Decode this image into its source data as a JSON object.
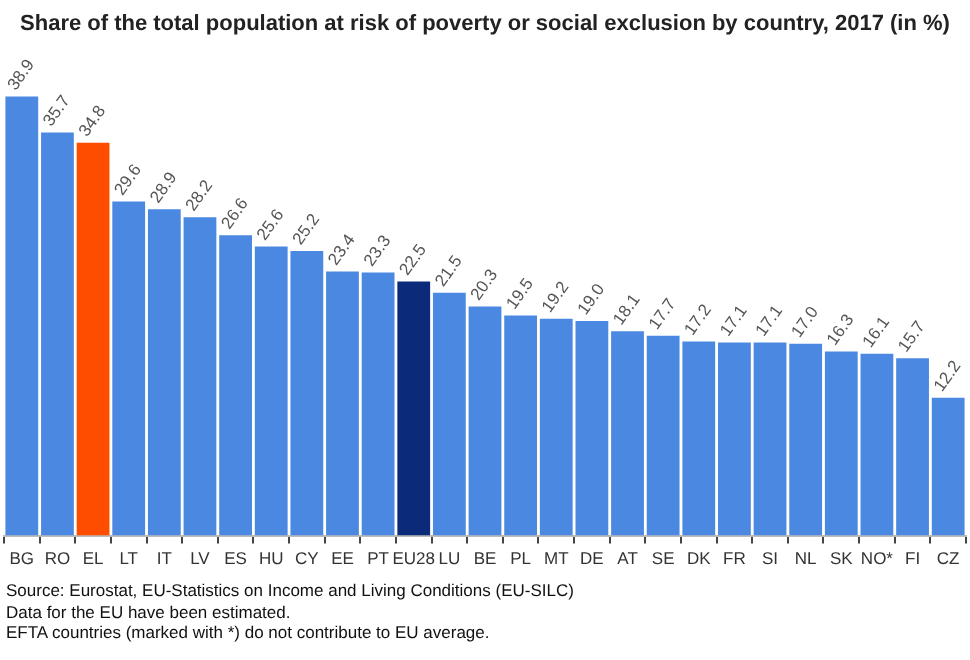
{
  "chart_data": {
    "type": "bar",
    "title": "Share of the total population at risk of poverty or social exclusion by country, 2017 (in %)",
    "categories": [
      "BG",
      "RO",
      "EL",
      "LT",
      "IT",
      "LV",
      "ES",
      "HU",
      "CY",
      "EE",
      "PT",
      "EU28",
      "LU",
      "BE",
      "PL",
      "MT",
      "DE",
      "AT",
      "SE",
      "DK",
      "FR",
      "SI",
      "NL",
      "SK",
      "NO*",
      "FI",
      "CZ"
    ],
    "values": [
      38.9,
      35.7,
      34.8,
      29.6,
      28.9,
      28.2,
      26.6,
      25.6,
      25.2,
      23.4,
      23.3,
      22.5,
      21.5,
      20.3,
      19.5,
      19.2,
      19.0,
      18.1,
      17.7,
      17.2,
      17.1,
      17.1,
      17.0,
      16.3,
      16.1,
      15.7,
      12.2
    ],
    "colors": [
      "#4a88e2",
      "#4a88e2",
      "#ff4d00",
      "#4a88e2",
      "#4a88e2",
      "#4a88e2",
      "#4a88e2",
      "#4a88e2",
      "#4a88e2",
      "#4a88e2",
      "#4a88e2",
      "#0b2a7a",
      "#4a88e2",
      "#4a88e2",
      "#4a88e2",
      "#4a88e2",
      "#4a88e2",
      "#4a88e2",
      "#4a88e2",
      "#4a88e2",
      "#4a88e2",
      "#4a88e2",
      "#4a88e2",
      "#4a88e2",
      "#4a88e2",
      "#4a88e2",
      "#4a88e2"
    ],
    "value_labels": [
      "38.9",
      "35.7",
      "34.8",
      "29.6",
      "28.9",
      "28.2",
      "26.6",
      "25.6",
      "25.2",
      "23.4",
      "23.3",
      "22.5",
      "21.5",
      "20.3",
      "19.5",
      "19.2",
      "19.0",
      "18.1",
      "17.7",
      "17.2",
      "17.1",
      "17.1",
      "17.0",
      "16.3",
      "16.1",
      "15.7",
      "12.2"
    ],
    "annotations": [
      "Source: Eurostat, EU-Statistics on Income and Living Conditions (EU-SILC)",
      "Data for the EU have been estimated.",
      "EFTA countries (marked with *) do not contribute to EU average."
    ]
  }
}
